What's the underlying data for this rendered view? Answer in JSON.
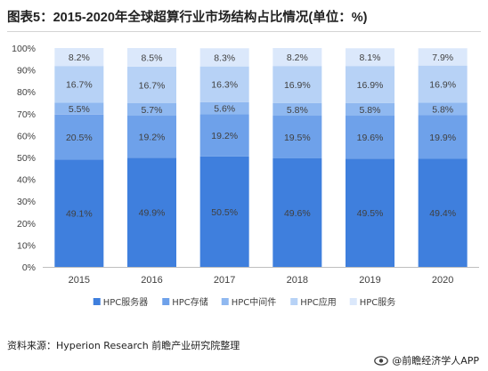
{
  "title": "图表5：2015-2020年全球超算行业市场结构占比情况(单位：%)",
  "source": "资料来源：Hyperion Research 前瞻产业研究院整理",
  "brand": {
    "icon": "eye-logo-icon",
    "text": "@前瞻经济学人APP"
  },
  "watermark": {
    "text": "前瞻产业研究院"
  },
  "colors": {
    "series": [
      "#3f7fdd",
      "#6ea1ea",
      "#8fb8f0",
      "#b7d2f6",
      "#dbe8fb"
    ],
    "axis": "#bfbfbf",
    "text": "#404040"
  },
  "chart_data": {
    "type": "bar",
    "stacked": true,
    "categories": [
      "2015",
      "2016",
      "2017",
      "2018",
      "2019",
      "2020"
    ],
    "series": [
      {
        "name": "HPC服务器",
        "values": [
          49.1,
          49.9,
          50.5,
          49.6,
          49.5,
          49.4
        ]
      },
      {
        "name": "HPC存储",
        "values": [
          20.5,
          19.2,
          19.2,
          19.5,
          19.6,
          19.9
        ]
      },
      {
        "name": "HPC中间件",
        "values": [
          5.5,
          5.7,
          5.6,
          5.8,
          5.8,
          5.8
        ]
      },
      {
        "name": "HPC应用",
        "values": [
          16.7,
          16.7,
          16.3,
          16.9,
          16.9,
          16.9
        ]
      },
      {
        "name": "HPC服务",
        "values": [
          8.2,
          8.5,
          8.3,
          8.2,
          8.1,
          7.9
        ]
      }
    ],
    "y_ticks": [
      "0%",
      "10%",
      "20%",
      "30%",
      "40%",
      "50%",
      "60%",
      "70%",
      "80%",
      "90%",
      "100%"
    ],
    "ylim": [
      0,
      100
    ],
    "grid": false,
    "legend": "bottom"
  }
}
